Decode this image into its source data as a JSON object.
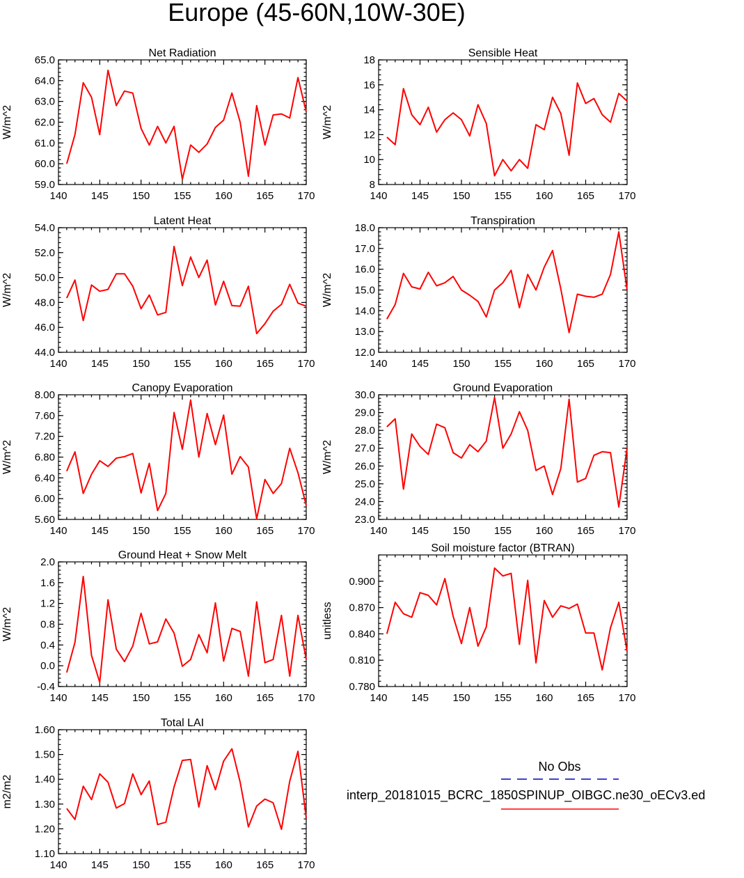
{
  "figure": {
    "title": "Europe (45-60N,10W-30E)"
  },
  "colors": {
    "model_line": "#ff0000",
    "obs_line": "#0000cc",
    "axis": "#000000"
  },
  "legend": {
    "obs_label": "No Obs",
    "model_label": "interp_20181015_BCRC_1850SPINUP_OIBGC.ne30_oECv3.ed"
  },
  "chart_data": [
    {
      "type": "line",
      "title": "Net Radiation",
      "ylabel": "W/m^2",
      "xlim": [
        140,
        170
      ],
      "ylim": [
        59,
        65
      ],
      "x_ticks": [
        140,
        145,
        150,
        155,
        160,
        165,
        170
      ],
      "x_tick_labels": [
        "140",
        "145",
        "150",
        "155",
        "160",
        "165",
        "170"
      ],
      "y_ticks": [
        59,
        60,
        61,
        62,
        63,
        64,
        65
      ],
      "y_tick_labels": [
        "59.0",
        "60.0",
        "61.0",
        "62.0",
        "63.0",
        "64.0",
        "65.0"
      ],
      "x": [
        141,
        142,
        143,
        144,
        145,
        146,
        147,
        148,
        149,
        150,
        151,
        152,
        153,
        154,
        155,
        156,
        157,
        158,
        159,
        160,
        161,
        162,
        163,
        164,
        165,
        166,
        167,
        168,
        169,
        170
      ],
      "series": [
        {
          "values": [
            60.0,
            61.4,
            63.9,
            63.2,
            61.4,
            64.5,
            62.8,
            63.5,
            63.4,
            61.7,
            60.9,
            61.8,
            61.0,
            61.8,
            59.25,
            60.9,
            60.55,
            60.95,
            61.75,
            62.1,
            63.4,
            62.0,
            59.4,
            62.8,
            60.9,
            62.35,
            62.4,
            62.2,
            64.15,
            62.5
          ]
        }
      ]
    },
    {
      "type": "line",
      "title": "Sensible Heat",
      "ylabel": "W/m^2",
      "xlim": [
        140,
        170
      ],
      "ylim": [
        8,
        18
      ],
      "x_ticks": [
        140,
        145,
        150,
        155,
        160,
        165,
        170
      ],
      "x_tick_labels": [
        "140",
        "145",
        "150",
        "155",
        "160",
        "165",
        "170"
      ],
      "y_ticks": [
        8,
        10,
        12,
        14,
        16,
        18
      ],
      "y_tick_labels": [
        "8",
        "10",
        "12",
        "14",
        "16",
        "18"
      ],
      "x": [
        141,
        142,
        143,
        144,
        145,
        146,
        147,
        148,
        149,
        150,
        151,
        152,
        153,
        154,
        155,
        156,
        157,
        158,
        159,
        160,
        161,
        162,
        163,
        164,
        165,
        166,
        167,
        168,
        169,
        170
      ],
      "series": [
        {
          "values": [
            11.8,
            11.2,
            15.7,
            13.6,
            12.8,
            14.2,
            12.2,
            13.2,
            13.75,
            13.2,
            11.9,
            14.4,
            12.9,
            8.7,
            10.0,
            9.1,
            10.0,
            9.3,
            12.8,
            12.4,
            15.0,
            13.7,
            10.35,
            16.15,
            14.5,
            14.9,
            13.6,
            13.0,
            15.3,
            14.7
          ]
        }
      ]
    },
    {
      "type": "line",
      "title": "Latent Heat",
      "ylabel": "W/m^2",
      "xlim": [
        140,
        170
      ],
      "ylim": [
        44,
        54
      ],
      "x_ticks": [
        140,
        145,
        150,
        155,
        160,
        165,
        170
      ],
      "x_tick_labels": [
        "140",
        "145",
        "150",
        "155",
        "160",
        "165",
        "170"
      ],
      "y_ticks": [
        44,
        46,
        48,
        50,
        52,
        54
      ],
      "y_tick_labels": [
        "44.0",
        "46.0",
        "48.0",
        "50.0",
        "52.0",
        "54.0"
      ],
      "x": [
        141,
        142,
        143,
        144,
        145,
        146,
        147,
        148,
        149,
        150,
        151,
        152,
        153,
        154,
        155,
        156,
        157,
        158,
        159,
        160,
        161,
        162,
        163,
        164,
        165,
        166,
        167,
        168,
        169,
        170
      ],
      "series": [
        {
          "values": [
            48.35,
            49.8,
            46.55,
            49.4,
            48.9,
            49.05,
            50.3,
            50.3,
            49.3,
            47.5,
            48.6,
            47.0,
            47.2,
            52.5,
            49.35,
            51.65,
            50.0,
            51.4,
            47.8,
            49.7,
            47.75,
            47.7,
            49.3,
            45.5,
            46.3,
            47.3,
            47.85,
            49.45,
            47.95,
            47.7
          ]
        }
      ]
    },
    {
      "type": "line",
      "title": "Transpiration",
      "ylabel": "W/m^2",
      "xlim": [
        140,
        170
      ],
      "ylim": [
        12,
        18
      ],
      "x_ticks": [
        140,
        145,
        150,
        155,
        160,
        165,
        170
      ],
      "x_tick_labels": [
        "140",
        "145",
        "150",
        "155",
        "160",
        "165",
        "170"
      ],
      "y_ticks": [
        12,
        13,
        14,
        15,
        16,
        17,
        18
      ],
      "y_tick_labels": [
        "12.0",
        "13.0",
        "14.0",
        "15.0",
        "16.0",
        "17.0",
        "18.0"
      ],
      "x": [
        141,
        142,
        143,
        144,
        145,
        146,
        147,
        148,
        149,
        150,
        151,
        152,
        153,
        154,
        155,
        156,
        157,
        158,
        159,
        160,
        161,
        162,
        163,
        164,
        165,
        166,
        167,
        168,
        169,
        170
      ],
      "series": [
        {
          "values": [
            13.6,
            14.3,
            15.8,
            15.15,
            15.05,
            15.85,
            15.2,
            15.35,
            15.65,
            15.0,
            14.75,
            14.45,
            13.7,
            15.0,
            15.35,
            15.95,
            14.15,
            15.75,
            15.0,
            16.1,
            16.9,
            15.05,
            12.95,
            14.8,
            14.7,
            14.65,
            14.8,
            15.75,
            17.8,
            15.0
          ]
        }
      ]
    },
    {
      "type": "line",
      "title": "Canopy Evaporation",
      "ylabel": "W/m^2",
      "xlim": [
        140,
        170
      ],
      "ylim": [
        5.6,
        8.0
      ],
      "x_ticks": [
        140,
        145,
        150,
        155,
        160,
        165,
        170
      ],
      "x_tick_labels": [
        "140",
        "145",
        "150",
        "155",
        "160",
        "165",
        "170"
      ],
      "y_ticks": [
        5.6,
        6.0,
        6.4,
        6.8,
        7.2,
        7.6,
        8.0
      ],
      "y_tick_labels": [
        "5.60",
        "6.00",
        "6.40",
        "6.80",
        "7.20",
        "7.60",
        "8.00"
      ],
      "x": [
        141,
        142,
        143,
        144,
        145,
        146,
        147,
        148,
        149,
        150,
        151,
        152,
        153,
        154,
        155,
        156,
        157,
        158,
        159,
        160,
        161,
        162,
        163,
        164,
        165,
        166,
        167,
        168,
        169,
        170
      ],
      "series": [
        {
          "values": [
            6.53,
            6.9,
            6.1,
            6.47,
            6.73,
            6.62,
            6.78,
            6.81,
            6.87,
            6.11,
            6.68,
            5.77,
            6.1,
            7.66,
            6.95,
            7.9,
            6.8,
            7.64,
            7.04,
            7.61,
            6.47,
            6.81,
            6.61,
            5.61,
            6.37,
            6.1,
            6.29,
            6.97,
            6.5,
            5.87
          ]
        }
      ]
    },
    {
      "type": "line",
      "title": "Ground Evaporation",
      "ylabel": "W/m^2",
      "xlim": [
        140,
        170
      ],
      "ylim": [
        23,
        30
      ],
      "x_ticks": [
        140,
        145,
        150,
        155,
        160,
        165,
        170
      ],
      "x_tick_labels": [
        "140",
        "145",
        "150",
        "155",
        "160",
        "165",
        "170"
      ],
      "y_ticks": [
        23,
        24,
        25,
        26,
        27,
        28,
        29,
        30
      ],
      "y_tick_labels": [
        "23.0",
        "24.0",
        "25.0",
        "26.0",
        "27.0",
        "28.0",
        "29.0",
        "30.0"
      ],
      "x": [
        141,
        142,
        143,
        144,
        145,
        146,
        147,
        148,
        149,
        150,
        151,
        152,
        153,
        154,
        155,
        156,
        157,
        158,
        159,
        160,
        161,
        162,
        163,
        164,
        165,
        166,
        167,
        168,
        169,
        170
      ],
      "series": [
        {
          "values": [
            28.2,
            28.65,
            24.7,
            27.8,
            27.1,
            26.65,
            28.35,
            28.15,
            26.75,
            26.45,
            27.2,
            26.8,
            27.4,
            29.85,
            27.0,
            27.8,
            29.05,
            28.0,
            25.75,
            26.0,
            24.4,
            25.85,
            29.75,
            25.1,
            25.3,
            26.6,
            26.8,
            26.75,
            23.7,
            27.0
          ]
        }
      ]
    },
    {
      "type": "line",
      "title": "Ground Heat + Snow Melt",
      "ylabel": "W/m^2",
      "xlim": [
        140,
        170
      ],
      "ylim": [
        -0.4,
        2.0
      ],
      "x_ticks": [
        140,
        145,
        150,
        155,
        160,
        165,
        170
      ],
      "x_tick_labels": [
        "140",
        "145",
        "150",
        "155",
        "160",
        "165",
        "170"
      ],
      "y_ticks": [
        -0.4,
        0.0,
        0.4,
        0.8,
        1.2,
        1.6,
        2.0
      ],
      "y_tick_labels": [
        "-0.4",
        "0.0",
        "0.4",
        "0.8",
        "1.2",
        "1.6",
        "2.0"
      ],
      "x": [
        141,
        142,
        143,
        144,
        145,
        146,
        147,
        148,
        149,
        150,
        151,
        152,
        153,
        154,
        155,
        156,
        157,
        158,
        159,
        160,
        161,
        162,
        163,
        164,
        165,
        166,
        167,
        168,
        169,
        170
      ],
      "series": [
        {
          "values": [
            -0.13,
            0.45,
            1.72,
            0.2,
            -0.32,
            1.27,
            0.32,
            0.08,
            0.38,
            1.01,
            0.42,
            0.46,
            0.9,
            0.63,
            -0.01,
            0.12,
            0.6,
            0.25,
            1.21,
            0.09,
            0.72,
            0.66,
            -0.2,
            1.23,
            0.06,
            0.12,
            0.97,
            -0.2,
            0.97,
            0.12
          ]
        }
      ]
    },
    {
      "type": "line",
      "title": "Soil moisture factor (BTRAN)",
      "ylabel": "unitless",
      "xlim": [
        140,
        170
      ],
      "ylim": [
        0.78,
        0.93
      ],
      "x_ticks": [
        140,
        145,
        150,
        155,
        160,
        165,
        170
      ],
      "x_tick_labels": [
        "140",
        "145",
        "150",
        "155",
        "160",
        "165",
        "170"
      ],
      "y_ticks": [
        0.78,
        0.81,
        0.84,
        0.87,
        0.9
      ],
      "y_tick_labels": [
        "0.780",
        "0.810",
        "0.840",
        "0.870",
        "0.900"
      ],
      "x": [
        141,
        142,
        143,
        144,
        145,
        146,
        147,
        148,
        149,
        150,
        151,
        152,
        153,
        154,
        155,
        156,
        157,
        158,
        159,
        160,
        161,
        162,
        163,
        164,
        165,
        166,
        167,
        168,
        169,
        170
      ],
      "series": [
        {
          "values": [
            0.84,
            0.876,
            0.863,
            0.859,
            0.887,
            0.884,
            0.873,
            0.903,
            0.86,
            0.829,
            0.87,
            0.826,
            0.848,
            0.915,
            0.906,
            0.909,
            0.828,
            0.901,
            0.807,
            0.878,
            0.859,
            0.872,
            0.869,
            0.874,
            0.841,
            0.841,
            0.799,
            0.847,
            0.876,
            0.82
          ]
        }
      ]
    },
    {
      "type": "line",
      "title": "Total LAI",
      "ylabel": "m2/m2",
      "xlim": [
        140,
        170
      ],
      "ylim": [
        1.1,
        1.6
      ],
      "x_ticks": [
        140,
        145,
        150,
        155,
        160,
        165,
        170
      ],
      "x_tick_labels": [
        "140",
        "145",
        "150",
        "155",
        "160",
        "165",
        "170"
      ],
      "y_ticks": [
        1.1,
        1.2,
        1.3,
        1.4,
        1.5,
        1.6
      ],
      "y_tick_labels": [
        "1.10",
        "1.20",
        "1.30",
        "1.40",
        "1.50",
        "1.60"
      ],
      "x": [
        141,
        142,
        143,
        144,
        145,
        146,
        147,
        148,
        149,
        150,
        151,
        152,
        153,
        154,
        155,
        156,
        157,
        158,
        159,
        160,
        161,
        162,
        163,
        164,
        165,
        166,
        167,
        168,
        169,
        170
      ],
      "series": [
        {
          "values": [
            1.282,
            1.238,
            1.372,
            1.318,
            1.422,
            1.388,
            1.284,
            1.302,
            1.422,
            1.338,
            1.393,
            1.217,
            1.227,
            1.369,
            1.476,
            1.48,
            1.288,
            1.455,
            1.358,
            1.473,
            1.523,
            1.388,
            1.208,
            1.292,
            1.32,
            1.305,
            1.198,
            1.392,
            1.513,
            1.243
          ]
        }
      ]
    }
  ]
}
